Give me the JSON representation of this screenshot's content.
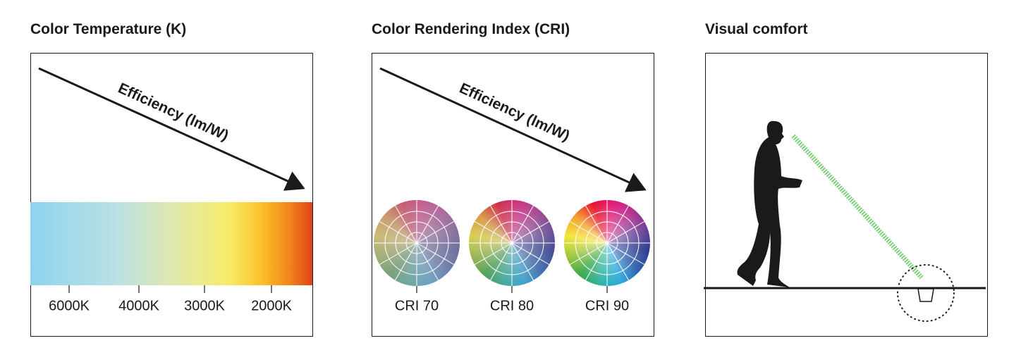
{
  "panels": [
    {
      "title": "Color Temperature (K)",
      "arrow_label": "Efficiency (lm/W)",
      "labels": [
        "6000K",
        "4000K",
        "3000K",
        "2000K"
      ]
    },
    {
      "title": "Color Rendering Index (CRI)",
      "arrow_label": "Efficiency (lm/W)",
      "labels": [
        "CRI 70",
        "CRI 80",
        "CRI 90"
      ]
    },
    {
      "title": "Visual comfort"
    }
  ]
}
